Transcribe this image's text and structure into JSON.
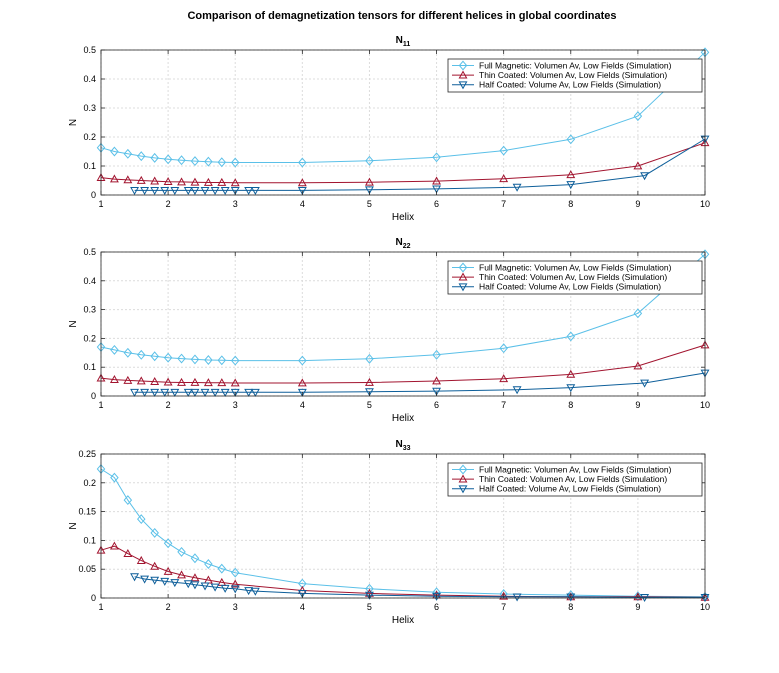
{
  "figure": {
    "title": "Comparison of demagnetization tensors for different helices in global coordinates"
  },
  "styles": {
    "series_colors": [
      "#5bc0e8",
      "#a2142f",
      "#0e5f9a"
    ],
    "markers": [
      "diamond",
      "triangle-up",
      "triangle-down"
    ]
  },
  "chart_data": [
    {
      "type": "line",
      "title_main": "N",
      "title_sub": "11",
      "xlabel": "Helix",
      "ylabel": "N",
      "xlim": [
        1,
        10
      ],
      "ylim": [
        0,
        0.5
      ],
      "xticks": [
        1,
        2,
        3,
        4,
        5,
        6,
        7,
        8,
        9,
        10
      ],
      "yticks": [
        0,
        0.1,
        0.2,
        0.3,
        0.4,
        0.5
      ],
      "grid": true,
      "legend_position": "top-right",
      "series": [
        {
          "name": "Full Magnetic: Volumen Av, Low Fields (Simulation)",
          "x": [
            1,
            1.2,
            1.4,
            1.6,
            1.8,
            2,
            2.2,
            2.4,
            2.6,
            2.8,
            3,
            4,
            5,
            6,
            7,
            8,
            9,
            10
          ],
          "y": [
            0.163,
            0.15,
            0.142,
            0.134,
            0.128,
            0.123,
            0.12,
            0.117,
            0.115,
            0.113,
            0.112,
            0.112,
            0.118,
            0.13,
            0.153,
            0.192,
            0.272,
            0.492
          ]
        },
        {
          "name": "Thin Coated: Volumen Av, Low Fields (Simulation)",
          "x": [
            1,
            1.2,
            1.4,
            1.6,
            1.8,
            2,
            2.2,
            2.4,
            2.6,
            2.8,
            3,
            4,
            5,
            6,
            7,
            8,
            9,
            10
          ],
          "y": [
            0.06,
            0.055,
            0.052,
            0.05,
            0.048,
            0.046,
            0.045,
            0.044,
            0.043,
            0.043,
            0.042,
            0.042,
            0.044,
            0.048,
            0.056,
            0.07,
            0.1,
            0.18
          ]
        },
        {
          "name": "Half Coated: Volume Av, Low Fields (Simulation)",
          "x": [
            1.5,
            1.65,
            1.8,
            1.95,
            2.1,
            2.3,
            2.4,
            2.55,
            2.7,
            2.85,
            3,
            3.2,
            3.3,
            4,
            5,
            6,
            7.2,
            8,
            9.1,
            10
          ],
          "y": [
            0.016,
            0.016,
            0.016,
            0.016,
            0.016,
            0.016,
            0.016,
            0.016,
            0.016,
            0.016,
            0.016,
            0.016,
            0.016,
            0.016,
            0.018,
            0.021,
            0.027,
            0.036,
            0.067,
            0.193
          ]
        }
      ]
    },
    {
      "type": "line",
      "title_main": "N",
      "title_sub": "22",
      "xlabel": "Helix",
      "ylabel": "N",
      "xlim": [
        1,
        10
      ],
      "ylim": [
        0,
        0.5
      ],
      "xticks": [
        1,
        2,
        3,
        4,
        5,
        6,
        7,
        8,
        9,
        10
      ],
      "yticks": [
        0,
        0.1,
        0.2,
        0.3,
        0.4,
        0.5
      ],
      "grid": true,
      "legend_position": "top-right",
      "series": [
        {
          "name": "Full Magnetic: Volumen Av, Low Fields (Simulation)",
          "x": [
            1,
            1.2,
            1.4,
            1.6,
            1.8,
            2,
            2.2,
            2.4,
            2.6,
            2.8,
            3,
            4,
            5,
            6,
            7,
            8,
            9,
            10
          ],
          "y": [
            0.17,
            0.16,
            0.15,
            0.143,
            0.138,
            0.133,
            0.13,
            0.127,
            0.125,
            0.124,
            0.123,
            0.123,
            0.129,
            0.143,
            0.166,
            0.207,
            0.287,
            0.492
          ]
        },
        {
          "name": "Thin Coated: Volumen Av, Low Fields (Simulation)",
          "x": [
            1,
            1.2,
            1.4,
            1.6,
            1.8,
            2,
            2.2,
            2.4,
            2.6,
            2.8,
            3,
            4,
            5,
            6,
            7,
            8,
            9,
            10
          ],
          "y": [
            0.062,
            0.057,
            0.054,
            0.052,
            0.05,
            0.048,
            0.047,
            0.047,
            0.046,
            0.046,
            0.045,
            0.045,
            0.047,
            0.052,
            0.06,
            0.075,
            0.104,
            0.177
          ]
        },
        {
          "name": "Half Coated: Volume Av, Low Fields (Simulation)",
          "x": [
            1.5,
            1.65,
            1.8,
            1.95,
            2.1,
            2.3,
            2.4,
            2.55,
            2.7,
            2.85,
            3,
            3.2,
            3.3,
            4,
            5,
            6,
            7.2,
            8,
            9.1,
            10
          ],
          "y": [
            0.013,
            0.013,
            0.013,
            0.013,
            0.013,
            0.013,
            0.013,
            0.013,
            0.013,
            0.013,
            0.013,
            0.013,
            0.013,
            0.013,
            0.015,
            0.017,
            0.022,
            0.029,
            0.045,
            0.08
          ]
        }
      ]
    },
    {
      "type": "line",
      "title_main": "N",
      "title_sub": "33",
      "xlabel": "Helix",
      "ylabel": "N",
      "xlim": [
        1,
        10
      ],
      "ylim": [
        0,
        0.25
      ],
      "xticks": [
        1,
        2,
        3,
        4,
        5,
        6,
        7,
        8,
        9,
        10
      ],
      "yticks": [
        0,
        0.05,
        0.1,
        0.15,
        0.2,
        0.25
      ],
      "grid": true,
      "legend_position": "top-right",
      "series": [
        {
          "name": "Full Magnetic: Volumen Av, Low Fields (Simulation)",
          "x": [
            1,
            1.2,
            1.4,
            1.6,
            1.8,
            2,
            2.2,
            2.4,
            2.6,
            2.8,
            3,
            4,
            5,
            6,
            7,
            8,
            9,
            10
          ],
          "y": [
            0.224,
            0.209,
            0.17,
            0.137,
            0.113,
            0.095,
            0.08,
            0.069,
            0.059,
            0.051,
            0.044,
            0.025,
            0.016,
            0.01,
            0.007,
            0.005,
            0.003,
            0.002
          ]
        },
        {
          "name": "Thin Coated: Volumen Av, Low Fields (Simulation)",
          "x": [
            1,
            1.2,
            1.4,
            1.6,
            1.8,
            2,
            2.2,
            2.4,
            2.6,
            2.8,
            3,
            4,
            5,
            6,
            7,
            8,
            9,
            10
          ],
          "y": [
            0.083,
            0.09,
            0.077,
            0.065,
            0.055,
            0.046,
            0.04,
            0.035,
            0.031,
            0.027,
            0.024,
            0.013,
            0.008,
            0.005,
            0.003,
            0.002,
            0.002,
            0.001
          ]
        },
        {
          "name": "Half Coated: Volume Av, Low Fields (Simulation)",
          "x": [
            1.5,
            1.65,
            1.8,
            1.95,
            2.1,
            2.3,
            2.4,
            2.55,
            2.7,
            2.85,
            3,
            3.2,
            3.3,
            4,
            5,
            6,
            7.2,
            8,
            9.1,
            10
          ],
          "y": [
            0.037,
            0.033,
            0.031,
            0.029,
            0.027,
            0.025,
            0.023,
            0.021,
            0.019,
            0.017,
            0.016,
            0.013,
            0.012,
            0.008,
            0.005,
            0.003,
            0.002,
            0.002,
            0.001,
            0.001
          ]
        }
      ]
    }
  ]
}
